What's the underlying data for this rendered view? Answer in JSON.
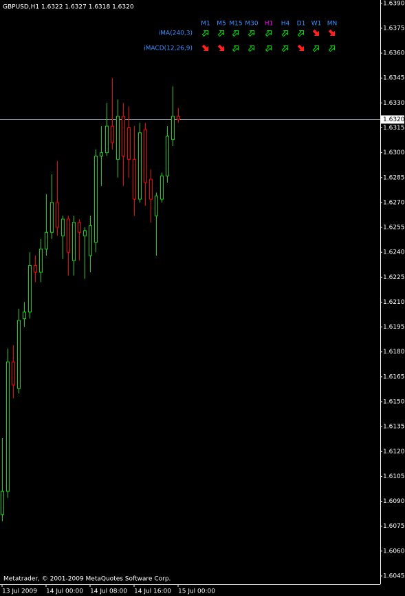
{
  "chart_data": {
    "type": "candlestick",
    "title": "GBPUSD,H1  1.6322 1.6327 1.6318 1.6320",
    "footer": "Metatrader, © 2001-2009 MetaQuotes Software Corp.",
    "categories": [
      "13 Jul 2009",
      null,
      null,
      null,
      null,
      null,
      null,
      null,
      "14 Jul 00:00",
      null,
      null,
      null,
      null,
      null,
      null,
      null,
      "14 Jul 08:00",
      null,
      null,
      null,
      null,
      null,
      null,
      null,
      "14 Jul 16:00",
      null,
      null,
      null,
      null,
      null,
      null,
      null,
      "15 Jul 00:00"
    ],
    "open": [
      1.6082,
      1.6096,
      1.6174,
      1.6158,
      1.62,
      1.6204,
      1.6232,
      1.6228,
      1.6242,
      1.6252,
      1.627,
      1.625,
      1.626,
      1.6235,
      1.6258,
      1.625,
      1.6238,
      1.6246,
      1.6298,
      1.63,
      1.6316,
      1.6296,
      1.6322,
      1.6315,
      1.6296,
      1.6272,
      1.6314,
      1.6284,
      1.6262,
      1.6272,
      1.6286,
      1.6308,
      1.6322
    ],
    "high": [
      1.6128,
      1.6182,
      1.6184,
      1.6206,
      1.621,
      1.624,
      1.6238,
      1.6248,
      1.6275,
      1.6287,
      1.6295,
      1.6262,
      1.6262,
      1.6262,
      1.626,
      1.6255,
      1.6262,
      1.6302,
      1.6316,
      1.633,
      1.6345,
      1.6332,
      1.633,
      1.6328,
      1.6316,
      1.6318,
      1.6318,
      1.629,
      1.6276,
      1.6288,
      1.6316,
      1.634,
      1.6327
    ],
    "low": [
      1.6078,
      1.6092,
      1.6152,
      1.6155,
      1.6195,
      1.62,
      1.6222,
      1.6222,
      1.6238,
      1.6248,
      1.625,
      1.6236,
      1.6226,
      1.6226,
      1.6235,
      1.6224,
      1.6228,
      1.624,
      1.628,
      1.6298,
      1.6302,
      1.6285,
      1.628,
      1.6285,
      1.6262,
      1.627,
      1.6268,
      1.6258,
      1.6238,
      1.627,
      1.6282,
      1.6304,
      1.6318
    ],
    "close": [
      1.6096,
      1.6174,
      1.616,
      1.6199,
      1.6204,
      1.6232,
      1.6228,
      1.6242,
      1.6252,
      1.627,
      1.6255,
      1.626,
      1.624,
      1.6258,
      1.6252,
      1.6253,
      1.6256,
      1.6298,
      1.63,
      1.6316,
      1.6306,
      1.6322,
      1.6298,
      1.6296,
      1.6272,
      1.6312,
      1.6282,
      1.6272,
      1.6274,
      1.6286,
      1.631,
      1.6322,
      1.632
    ],
    "up_color": "#00e000",
    "down_color": "#ff0000",
    "ylim": [
      1.604,
      1.6392
    ],
    "yticks": [
      {
        "value": 1.639,
        "label": "1.6390"
      },
      1.6375,
      {
        "value": 1.636,
        "label": "1.6360"
      },
      1.6345,
      {
        "value": 1.633,
        "label": "1.6330"
      },
      1.6315,
      {
        "value": 1.63,
        "label": "1.6300"
      },
      1.6285,
      {
        "value": 1.627,
        "label": "1.6270"
      },
      1.6255,
      {
        "value": 1.624,
        "label": "1.6240"
      },
      1.6225,
      {
        "value": 1.621,
        "label": "1.6210"
      },
      1.6195,
      {
        "value": 1.618,
        "label": "1.6180"
      },
      1.6165,
      {
        "value": 1.615,
        "label": "1.6150"
      },
      1.6135,
      {
        "value": 1.612,
        "label": "1.6120"
      },
      1.6105,
      {
        "value": 1.609,
        "label": "1.6090"
      },
      1.6075,
      {
        "value": 1.606,
        "label": "1.6060"
      },
      1.6045
    ],
    "current_price": {
      "value": 1.632,
      "label": "1.6320"
    },
    "signals": {
      "timeframes": [
        "M1",
        "M5",
        "M15",
        "M30",
        "H1",
        "H4",
        "D1",
        "W1",
        "MN"
      ],
      "timeframe_colors": [
        "#3d8fff",
        "#3d8fff",
        "#3d8fff",
        "#3d8fff",
        "#ff00ff",
        "#3d8fff",
        "#3d8fff",
        "#3d8fff",
        "#3d8fff"
      ],
      "rows": [
        {
          "label": "iMA(240,3)",
          "directions": [
            "up",
            "up",
            "up",
            "up",
            "up",
            "up",
            "up",
            "down",
            "down"
          ]
        },
        {
          "label": "iMACD(12,26,9)",
          "directions": [
            "down",
            "down",
            "up",
            "up",
            "up",
            "up",
            "down",
            "up",
            "up"
          ]
        }
      ]
    }
  }
}
